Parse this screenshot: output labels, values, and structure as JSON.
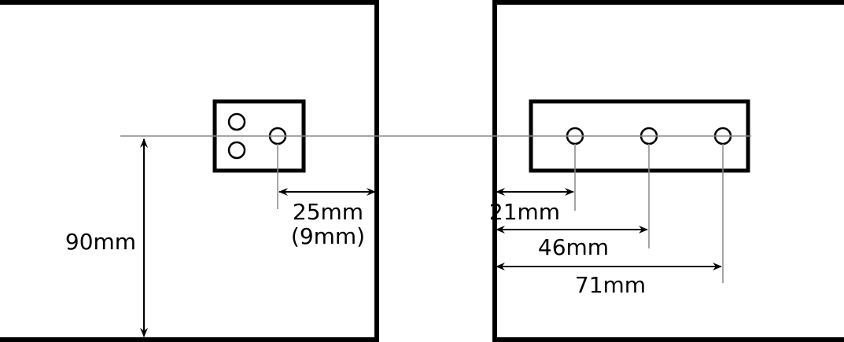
{
  "left_panel": {
    "dimension_label": "25mm",
    "dimension_sublabel": "(9mm)",
    "vertical_label": "90mm"
  },
  "right_panel": {
    "dimensions": [
      {
        "label": "21mm"
      },
      {
        "label": "46mm"
      },
      {
        "label": "71mm"
      }
    ]
  },
  "colors": {
    "outline": "#000000",
    "guide": "#888888",
    "background": "#ffffff"
  }
}
